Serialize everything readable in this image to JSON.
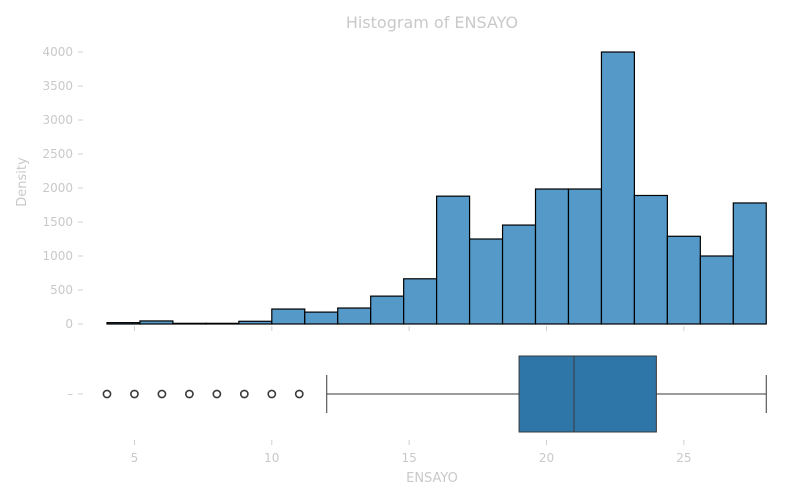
{
  "chart_data": [
    {
      "type": "bar",
      "subtype": "histogram",
      "title": "Histogram of ENSAYO",
      "ylabel": "Density",
      "xlabel": "",
      "xlim": [
        3.2,
        28.5
      ],
      "ylim": [
        0,
        4000
      ],
      "yticks": [
        0,
        500,
        1000,
        1500,
        2000,
        2500,
        3000,
        3500,
        4000
      ],
      "bin_edges": [
        4.0,
        5.2,
        6.4,
        7.6,
        8.8,
        10.0,
        11.2,
        12.4,
        13.6,
        14.8,
        16.0,
        17.2,
        18.4,
        19.6,
        20.8,
        22.0,
        23.2,
        24.4,
        25.6,
        26.8,
        28.0
      ],
      "values": [
        20,
        45,
        10,
        10,
        40,
        220,
        175,
        235,
        410,
        665,
        1880,
        1250,
        1455,
        1985,
        1985,
        4000,
        1890,
        1290,
        1000,
        1780
      ],
      "bar_color": "#5499c7",
      "grid": false,
      "legend": "none"
    },
    {
      "type": "box",
      "xlabel": "ENSAYO",
      "xlim": [
        3.2,
        28.5
      ],
      "xticks": [
        5,
        10,
        15,
        20,
        25
      ],
      "ytick_label": "–",
      "whisker_low": 12,
      "q1": 19,
      "median": 21,
      "q3": 24,
      "whisker_high": 28,
      "outliers": [
        4,
        5,
        6,
        7,
        8,
        9,
        10,
        11
      ],
      "box_color": "#2e75a8"
    }
  ]
}
